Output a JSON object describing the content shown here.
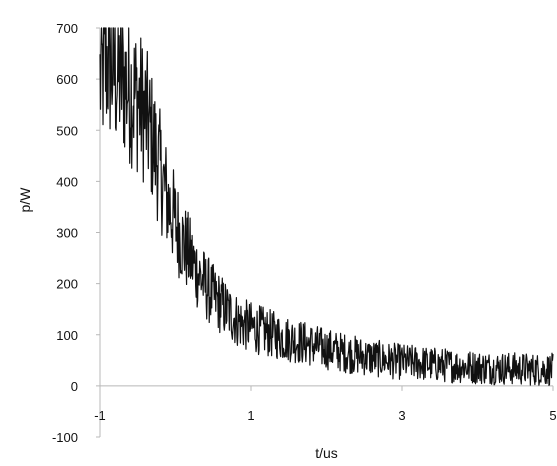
{
  "chart_data": {
    "type": "line",
    "title": "",
    "xlabel": "t/us",
    "ylabel": "p/W",
    "xlim": [
      -1,
      5
    ],
    "ylim": [
      -100,
      700
    ],
    "x_ticks": [
      -1,
      1,
      3,
      5
    ],
    "x_tick_labels": [
      "-1",
      "1",
      "3",
      "5"
    ],
    "y_ticks": [
      -100,
      0,
      100,
      200,
      300,
      400,
      500,
      600,
      700
    ],
    "y_tick_labels": [
      "-100",
      "0",
      "100",
      "200",
      "300",
      "400",
      "500",
      "600",
      "700"
    ],
    "grid": false,
    "legend": "none",
    "series": [
      {
        "color": "#111111",
        "x": [
          -1.0,
          -0.9,
          -0.8,
          -0.7,
          -0.6,
          -0.5,
          -0.4,
          -0.3,
          -0.2,
          -0.1,
          0.0,
          0.1,
          0.2,
          0.3,
          0.4,
          0.5,
          0.6,
          0.7,
          0.8,
          0.9,
          1.0,
          1.2,
          1.4,
          1.6,
          1.8,
          2.0,
          2.2,
          2.4,
          2.6,
          2.8,
          3.0,
          3.2,
          3.4,
          3.6,
          3.8,
          4.0,
          4.2,
          4.4,
          4.6,
          4.8,
          5.0
        ],
        "y": [
          600,
          640,
          610,
          600,
          580,
          560,
          530,
          480,
          420,
          360,
          320,
          280,
          250,
          220,
          195,
          175,
          160,
          145,
          130,
          120,
          115,
          105,
          95,
          88,
          80,
          72,
          66,
          60,
          55,
          50,
          47,
          45,
          42,
          40,
          38,
          36,
          35,
          34,
          33,
          32,
          32
        ]
      }
    ]
  }
}
